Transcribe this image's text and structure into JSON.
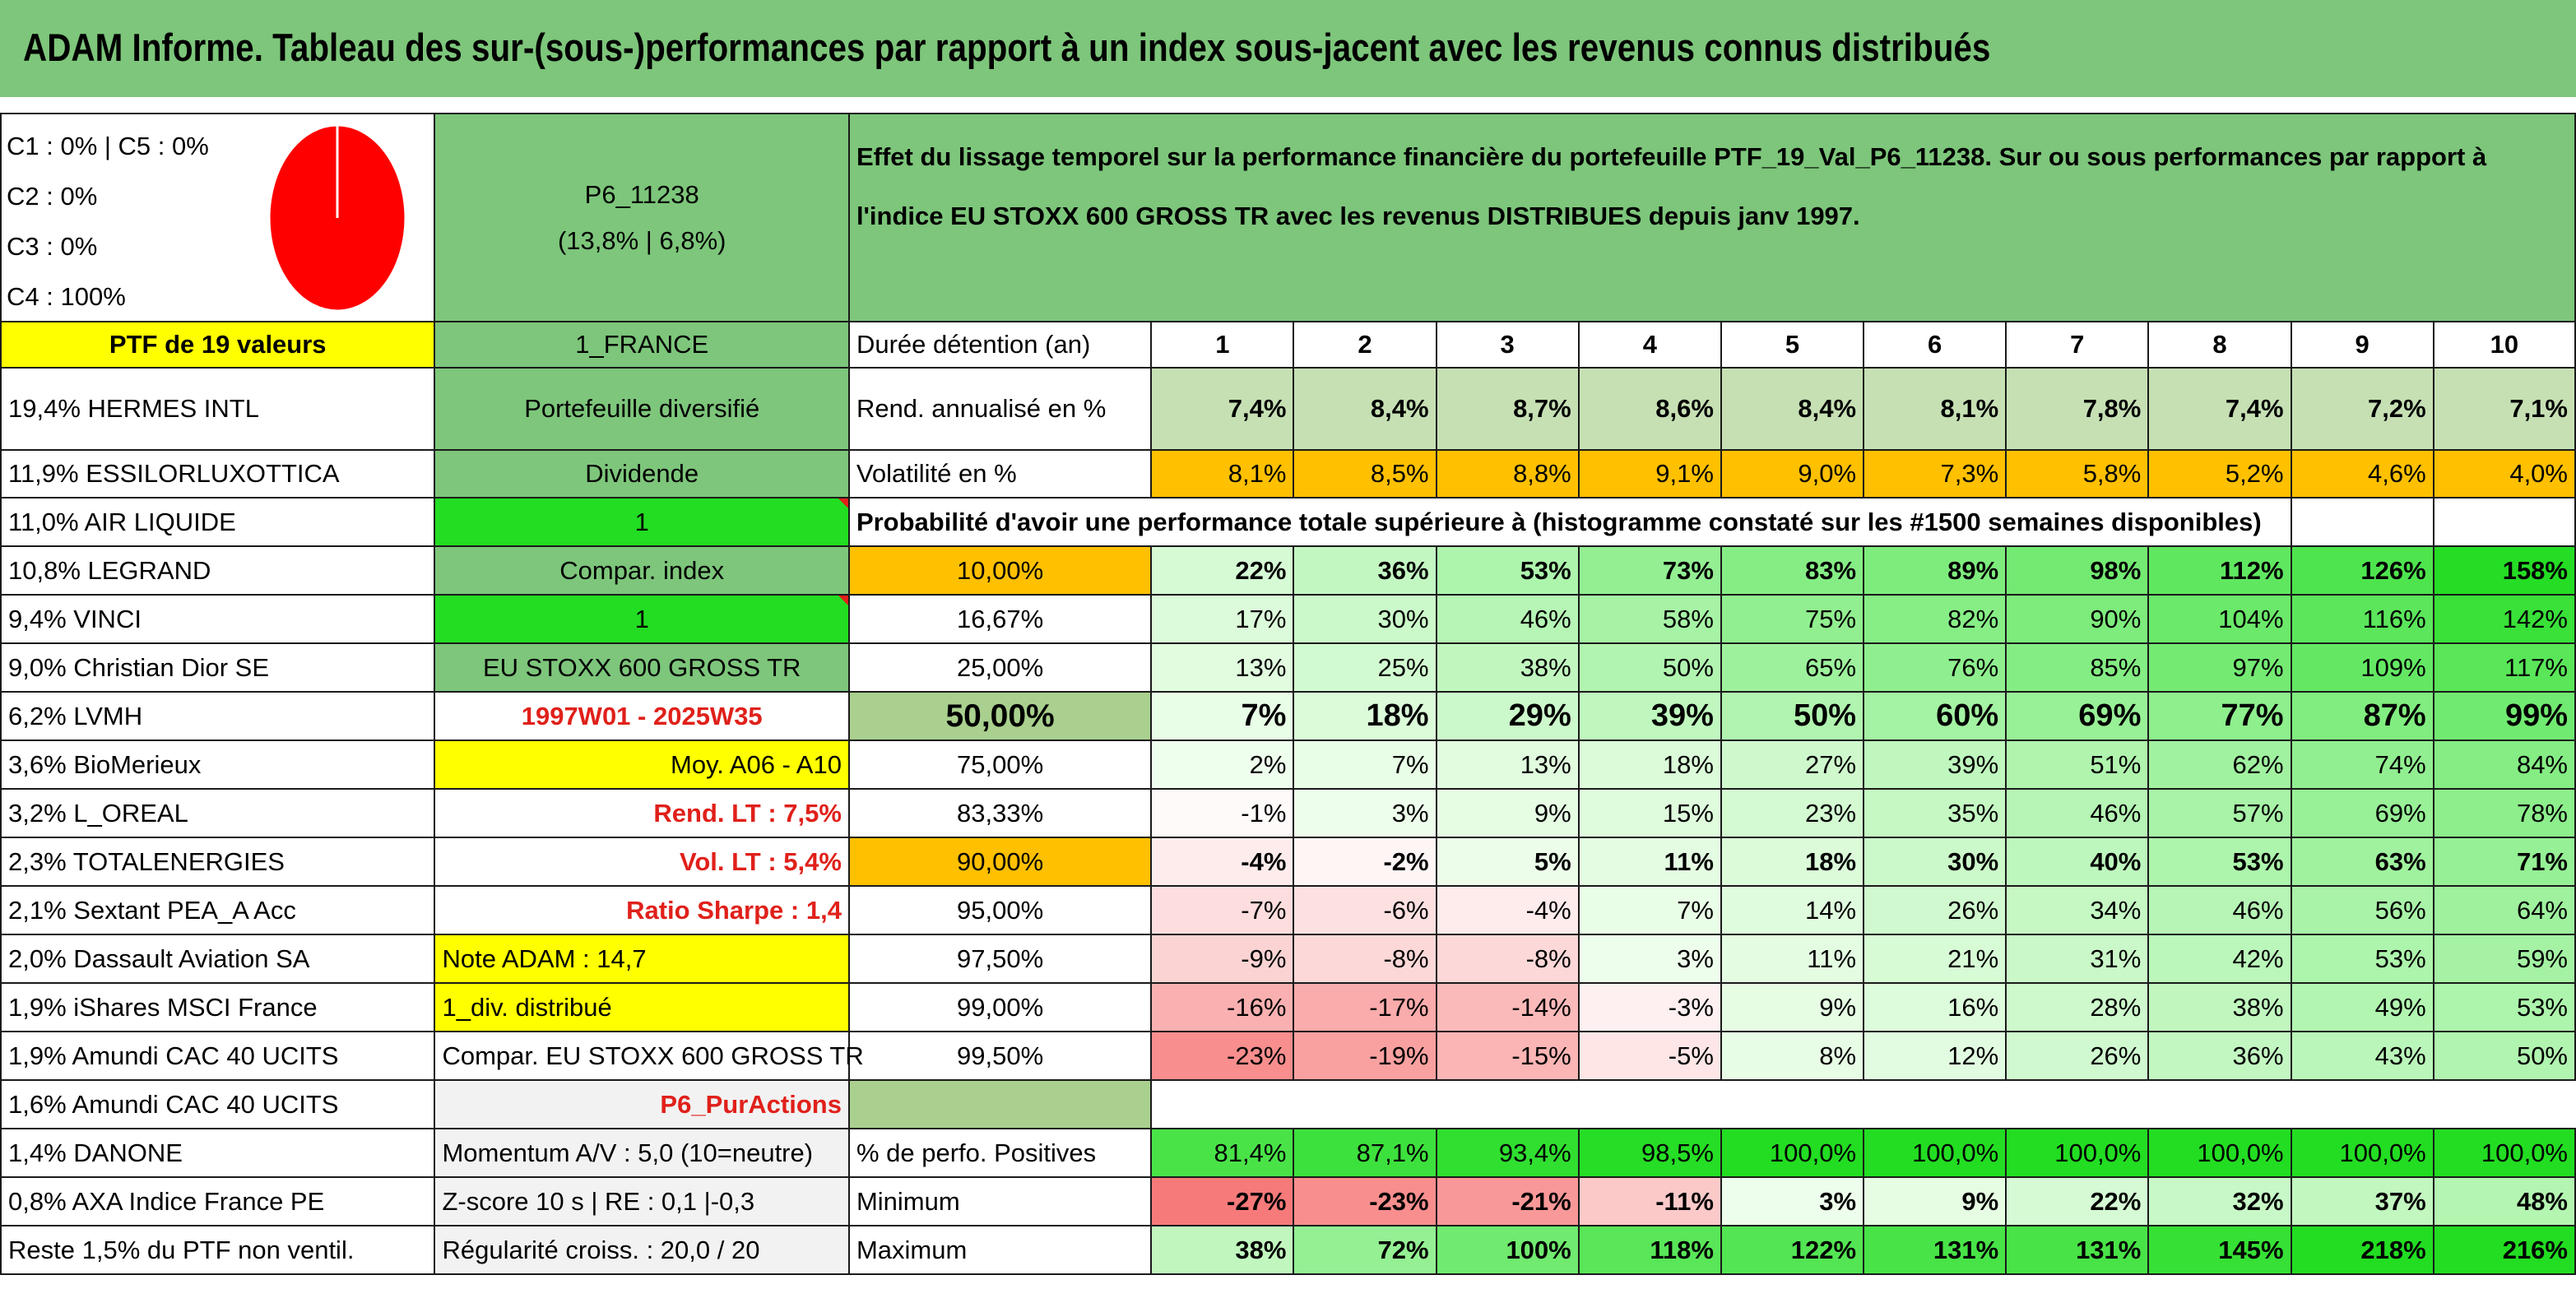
{
  "title": "ADAM Informe. Tableau des sur-(sous-)performances par rapport à un index sous-jacent avec les revenus connus distribués",
  "pie": {
    "legend": [
      "C1 : 0% | C5 : 0%",
      "C2 : 0%",
      "C3 : 0%",
      "C4 : 100%"
    ],
    "color": "#ff0000"
  },
  "fund": {
    "code": "P6_11238",
    "perf": "(13,8% | 6,8%)"
  },
  "description": "Effet du lissage temporel sur la performance financière du portefeuille PTF_19_Val_P6_11238. Sur ou sous performances par rapport à l'indice EU STOXX 600 GROSS TR avec les revenus DISTRIBUES depuis janv 1997.",
  "holdings": [
    "PTF de 19 valeurs",
    "19,4% HERMES INTL",
    "11,9% ESSILORLUXOTTICA",
    "11,0% AIR LIQUIDE",
    "10,8% LEGRAND",
    "9,4% VINCI",
    "9,0% Christian Dior SE",
    "6,2% LVMH",
    "3,6% BioMerieux",
    "3,2% L_OREAL",
    "2,3% TOTALENERGIES",
    "2,1% Sextant PEA_A Acc",
    "2,0% Dassault Aviation SA",
    "1,9% iShares MSCI France",
    "1,9% Amundi CAC 40 UCITS",
    "1,6% Amundi CAC 40 UCITS",
    "1,4% DANONE",
    "0,8% AXA Indice France PE",
    "Reste 1,5% du PTF non ventil."
  ],
  "info": [
    "1_FRANCE",
    "Portefeuille diversifié",
    "Dividende",
    "1",
    "Compar. index",
    "1",
    "EU STOXX 600 GROSS TR",
    "1997W01 - 2025W35",
    "Moy. A06 - A10",
    "Rend. LT : 7,5%",
    "Vol. LT : 5,4%",
    "Ratio Sharpe : 1,4",
    "Note ADAM : 14,7",
    "1_div. distribué",
    "Compar. EU STOXX 600 GROSS TR",
    "P6_PurActions",
    "Momentum A/V : 5,0 (10=neutre)",
    "Z-score 10 s | RE : 0,1 |-0,3",
    "Régularité croiss. : 20,0 / 20"
  ],
  "table": {
    "duration_label": "Durée détention (an)",
    "years": [
      "1",
      "2",
      "3",
      "4",
      "5",
      "6",
      "7",
      "8",
      "9",
      "10"
    ],
    "rend_label": "Rend. annualisé en %",
    "rend": [
      "7,4%",
      "8,4%",
      "8,7%",
      "8,6%",
      "8,4%",
      "8,1%",
      "7,8%",
      "7,4%",
      "7,2%",
      "7,1%"
    ],
    "vol_label": "Volatilité en %",
    "vol": [
      "8,1%",
      "8,5%",
      "8,8%",
      "9,1%",
      "9,0%",
      "7,3%",
      "5,8%",
      "5,2%",
      "4,6%",
      "4,0%"
    ],
    "prob_title": "Probabilité d'avoir une performance totale supérieure à (histogramme constaté sur les #1500 semaines disponibles)",
    "pct_rows": [
      {
        "p": "10,00%",
        "v": [
          "22%",
          "36%",
          "53%",
          "73%",
          "83%",
          "89%",
          "98%",
          "112%",
          "126%",
          "158%"
        ]
      },
      {
        "p": "16,67%",
        "v": [
          "17%",
          "30%",
          "46%",
          "58%",
          "75%",
          "82%",
          "90%",
          "104%",
          "116%",
          "142%"
        ]
      },
      {
        "p": "25,00%",
        "v": [
          "13%",
          "25%",
          "38%",
          "50%",
          "65%",
          "76%",
          "85%",
          "97%",
          "109%",
          "117%"
        ]
      },
      {
        "p": "50,00%",
        "v": [
          "7%",
          "18%",
          "29%",
          "39%",
          "50%",
          "60%",
          "69%",
          "77%",
          "87%",
          "99%"
        ]
      },
      {
        "p": "75,00%",
        "v": [
          "2%",
          "7%",
          "13%",
          "18%",
          "27%",
          "39%",
          "51%",
          "62%",
          "74%",
          "84%"
        ]
      },
      {
        "p": "83,33%",
        "v": [
          "-1%",
          "3%",
          "9%",
          "15%",
          "23%",
          "35%",
          "46%",
          "57%",
          "69%",
          "78%"
        ]
      },
      {
        "p": "90,00%",
        "v": [
          "-4%",
          "-2%",
          "5%",
          "11%",
          "18%",
          "30%",
          "40%",
          "53%",
          "63%",
          "71%"
        ]
      },
      {
        "p": "95,00%",
        "v": [
          "-7%",
          "-6%",
          "-4%",
          "7%",
          "14%",
          "26%",
          "34%",
          "46%",
          "56%",
          "64%"
        ]
      },
      {
        "p": "97,50%",
        "v": [
          "-9%",
          "-8%",
          "-8%",
          "3%",
          "11%",
          "21%",
          "31%",
          "42%",
          "53%",
          "59%"
        ]
      },
      {
        "p": "99,00%",
        "v": [
          "-16%",
          "-17%",
          "-14%",
          "-3%",
          "9%",
          "16%",
          "28%",
          "38%",
          "49%",
          "53%"
        ]
      },
      {
        "p": "99,50%",
        "v": [
          "-23%",
          "-19%",
          "-15%",
          "-5%",
          "8%",
          "12%",
          "26%",
          "36%",
          "43%",
          "50%"
        ]
      }
    ],
    "pos_label": "% de perfo. Positives",
    "pos": [
      "81,4%",
      "87,1%",
      "93,4%",
      "98,5%",
      "100,0%",
      "100,0%",
      "100,0%",
      "100,0%",
      "100,0%",
      "100,0%"
    ],
    "min_label": "Minimum",
    "min": [
      "-27%",
      "-23%",
      "-21%",
      "-11%",
      "3%",
      "9%",
      "22%",
      "32%",
      "37%",
      "48%"
    ],
    "max_label": "Maximum",
    "max": [
      "38%",
      "72%",
      "100%",
      "118%",
      "122%",
      "131%",
      "131%",
      "145%",
      "218%",
      "216%"
    ]
  }
}
